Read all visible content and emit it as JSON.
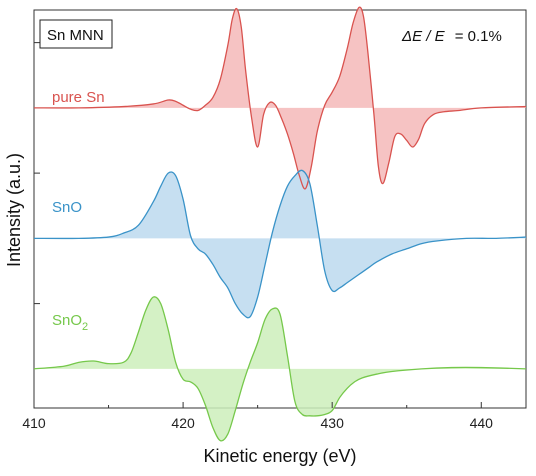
{
  "chart_data": {
    "type": "line",
    "title": "",
    "box_label": "Sn MNN",
    "resolution_label": {
      "italic": "ΔE / E",
      "value": "= 0.1%"
    },
    "xlabel": "Kinetic energy (eV)",
    "ylabel": "Intensity (a.u.)",
    "xlim": [
      410,
      443
    ],
    "xticks": [
      410,
      420,
      430,
      440
    ],
    "ylim": [
      -1.3,
      1.75
    ],
    "grid": false,
    "legend": "none",
    "series": [
      {
        "name": "pure Sn",
        "label_main": "pure Sn",
        "label_sub": "",
        "color": "#d9534f",
        "fill": "#f4b8b8",
        "offset": 1.0,
        "x": [
          410,
          413,
          416,
          418,
          419,
          419.5,
          420,
          420.5,
          421,
          421.5,
          422,
          422.5,
          423,
          423.3,
          423.6,
          423.9,
          424.2,
          424.6,
          425,
          425.4,
          425.8,
          426.2,
          426.6,
          427,
          427.4,
          427.8,
          428.2,
          428.6,
          429,
          429.5,
          430,
          430.5,
          431,
          431.4,
          431.8,
          432.1,
          432.4,
          432.8,
          433.1,
          433.4,
          433.8,
          434.2,
          434.6,
          435,
          435.4,
          435.8,
          436.2,
          436.8,
          437.5,
          438.5,
          440,
          443
        ],
        "y": [
          0,
          0,
          0.01,
          0.03,
          0.06,
          0.05,
          0.02,
          -0.01,
          -0.02,
          0.02,
          0.08,
          0.22,
          0.48,
          0.68,
          0.76,
          0.62,
          0.28,
          -0.08,
          -0.3,
          -0.05,
          0.04,
          0.02,
          -0.08,
          -0.2,
          -0.35,
          -0.52,
          -0.62,
          -0.45,
          -0.18,
          0.02,
          0.12,
          0.24,
          0.45,
          0.65,
          0.77,
          0.7,
          0.42,
          -0.05,
          -0.45,
          -0.58,
          -0.42,
          -0.22,
          -0.2,
          -0.25,
          -0.3,
          -0.24,
          -0.12,
          -0.05,
          -0.03,
          -0.02,
          0,
          0.01
        ]
      },
      {
        "name": "SnO",
        "label_main": "SnO",
        "label_sub": "",
        "color": "#3a93c8",
        "fill": "#bcd9ee",
        "offset": 0.0,
        "x": [
          410,
          413,
          415,
          416,
          417,
          418,
          418.5,
          419,
          419.5,
          420,
          420.5,
          421,
          421.5,
          422,
          422.5,
          423,
          423.5,
          424,
          424.5,
          425,
          425.5,
          426,
          426.5,
          427,
          427.5,
          428,
          428.5,
          429,
          429.5,
          430,
          430.5,
          431,
          431.5,
          432,
          432.5,
          433,
          434,
          435,
          436,
          437,
          439,
          441,
          443
        ],
        "y": [
          0,
          0,
          0.01,
          0.04,
          0.1,
          0.28,
          0.4,
          0.5,
          0.48,
          0.3,
          0.02,
          -0.08,
          -0.12,
          -0.2,
          -0.3,
          -0.38,
          -0.5,
          -0.58,
          -0.6,
          -0.45,
          -0.2,
          0.05,
          0.25,
          0.4,
          0.48,
          0.52,
          0.42,
          0.1,
          -0.25,
          -0.4,
          -0.38,
          -0.34,
          -0.3,
          -0.26,
          -0.22,
          -0.18,
          -0.12,
          -0.08,
          -0.04,
          -0.02,
          0,
          0,
          0.01
        ]
      },
      {
        "name": "SnO2",
        "label_main": "SnO",
        "label_sub": "2",
        "color": "#76c84b",
        "fill": "#cdeebb",
        "offset": -1.0,
        "x": [
          410,
          412,
          413,
          414,
          415,
          416,
          416.5,
          417,
          417.5,
          418,
          418.5,
          419,
          419.5,
          420,
          420.5,
          421,
          421.5,
          422,
          422.5,
          423,
          423.5,
          424,
          424.5,
          425,
          425.5,
          426,
          426.5,
          427,
          427.5,
          428,
          428.5,
          429,
          429.5,
          430,
          430.5,
          431,
          431.5,
          432,
          433,
          434,
          436,
          438,
          440,
          443
        ],
        "y": [
          0,
          0.02,
          0.05,
          0.06,
          0.04,
          0.05,
          0.12,
          0.28,
          0.45,
          0.55,
          0.5,
          0.3,
          0.05,
          -0.08,
          -0.1,
          -0.15,
          -0.28,
          -0.45,
          -0.55,
          -0.5,
          -0.32,
          -0.12,
          0.05,
          0.2,
          0.38,
          0.46,
          0.42,
          0.1,
          -0.25,
          -0.35,
          -0.36,
          -0.36,
          -0.35,
          -0.32,
          -0.22,
          -0.15,
          -0.1,
          -0.07,
          -0.04,
          -0.02,
          0,
          0.01,
          0.01,
          0
        ]
      }
    ]
  }
}
